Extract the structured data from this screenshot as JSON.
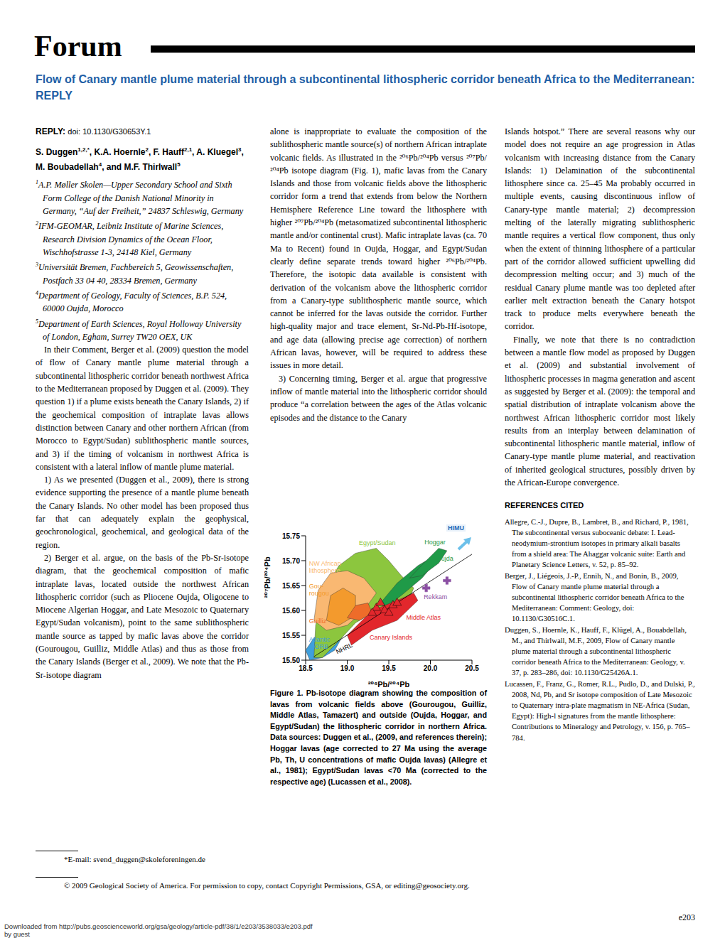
{
  "page": {
    "section": "Forum",
    "title": "Flow of Canary mantle plume material through a subcontinental lithospheric corridor beneath Africa to the Mediterranean: REPLY",
    "reply_label": "REPLY:",
    "doi": "doi: 10.1130/G30653Y.1",
    "authors": [
      {
        "text": "S. Duggen"
      },
      {
        "sup": "1,2,*"
      },
      {
        "text": ", K.A. Hoernle"
      },
      {
        "sup": "2"
      },
      {
        "text": ", F. Hauff"
      },
      {
        "sup": "2,1"
      },
      {
        "text": ", A. Kluegel"
      },
      {
        "sup": "3"
      },
      {
        "text": ", M. Boubadellah"
      },
      {
        "sup": "4"
      },
      {
        "text": ", and M.F. Thirlwall"
      },
      {
        "sup": "5"
      }
    ],
    "affiliations": [
      {
        "num": "1",
        "text": "A.P. Møller Skolen—Upper Secondary School and Sixth Form College of the Danish National Minority in Germany, “Auf der Freiheit,” 24837 Schleswig, Germany"
      },
      {
        "num": "2",
        "text": "IFM-GEOMAR, Leibniz Institute of Marine Sciences, Research Division Dynamics of the Ocean Floor, Wischhofstrasse 1-3, 24148 Kiel, Germany"
      },
      {
        "num": "3",
        "text": "Universität Bremen, Fachbereich 5, Geowissenschaften, Postfach 33 04 40, 28334 Bremen, Germany"
      },
      {
        "num": "4",
        "text": "Department of Geology, Faculty of Sciences, B.P. 524, 60000 Oujda, Morocco"
      },
      {
        "num": "5",
        "text": "Department of Earth Sciences, Royal Holloway University of London, Egham, Surrey TW20 OEX, UK"
      }
    ],
    "column_1": [
      "In their Comment, Berger et al. (2009) question the model of flow of Canary mantle plume material through a subcontinental lithospheric corridor beneath northwest Africa to the Mediterranean proposed by Duggen et al. (2009). They question 1) if a plume exists beneath the Canary Islands, 2) if the geochemical composition of intraplate lavas allows distinction between Canary and other northern African (from Morocco to Egypt/Sudan) sublithospheric mantle sources, and 3) if the timing of volcanism in northwest Africa is consistent with a lateral inflow of mantle plume material.",
      "1) As we presented (Duggen et al., 2009), there is strong evidence supporting the presence of a mantle plume beneath the Canary Islands. No other model has been proposed thus far that can adequately explain the geophysical, geochronological, geochemical, and geological data of the region.",
      "2) Berger et al. argue, on the basis of the Pb-Sr-isotope diagram, that the geochemical composition of mafic intraplate lavas, located outside the northwest African lithospheric corridor (such as Pliocene Oujda, Oligocene to Miocene Algerian Hoggar, and Late Mesozoic to Quaternary Egypt/Sudan volcanism), point to the same sublithospheric mantle source as tapped by mafic lavas above the corridor (Gourougou, Guilliz, Middle Atlas) and thus as those from the Canary Islands (Berger et al., 2009). We note that the Pb-Sr-isotope diagram"
    ],
    "column_2": [
      "alone is inappropriate to evaluate the composition of the sublithospheric mantle source(s) of northern African intraplate volcanic fields. As illustrated in the ²⁰⁶Pb/²⁰⁴Pb versus ²⁰⁷Pb/²⁰⁴Pb isotope diagram (Fig. 1), mafic lavas from the Canary Islands and those from volcanic fields above the lithospheric corridor form a trend that extends from below the Northern Hemisphere Reference Line toward the lithosphere with higher ²⁰⁷Pb/²⁰⁴Pb (metasomatized subcontinental lithospheric mantle and/or continental crust). Mafic intraplate lavas (ca. 70 Ma to Recent) found in Oujda, Hoggar, and Egypt/Sudan clearly define separate trends toward higher ²⁰⁶Pb/²⁰⁴Pb. Therefore, the isotopic data available is consistent with derivation of the volcanism above the lithospheric corridor from a Canary-type sublithospheric mantle source, which cannot be inferred for the lavas outside the corridor. Further high-quality major and trace element, Sr-Nd-Pb-Hf-isotope, and age data (allowing precise age correction) of northern African lavas, however, will be required to address these issues in more detail.",
      "3) Concerning timing, Berger et al. argue that progressive inflow of mantle material into the lithospheric corridor should produce “a correlation between the ages of the Atlas volcanic episodes and the distance to the Canary"
    ],
    "column_3": [
      "Islands hotspot.” There are several reasons why our model does not require an age progression in Atlas volcanism with increasing distance from the Canary Islands: 1) Delamination of the subcontinental lithosphere since ca. 25–45 Ma probably occurred in multiple events, causing discontinuous inflow of Canary-type mantle material; 2) decompression melting of the laterally migrating sublithospheric mantle requires a vertical flow component, thus only when the extent of thinning lithosphere of a particular part of the corridor allowed sufficient upwelling did decompression melting occur; and 3) much of the residual Canary plume mantle was too depleted after earlier melt extraction beneath the Canary hotspot track to produce melts everywhere beneath the corridor.",
      "Finally, we note that there is no contradiction between a mantle flow model as proposed by Duggen et al. (2009) and substantial involvement of lithospheric processes in magma generation and ascent as suggested by Berger et al. (2009): the temporal and spatial distribution of intraplate volcanism above the northwest African lithospheric corridor most likely results from an interplay between delamination of subcontinental lithospheric mantle material, inflow of Canary-type mantle plume material, and reactivation of inherited geological structures, possibly driven by the African-Europe convergence."
    ],
    "references_title": "REFERENCES CITED",
    "references": [
      "Allegre, C.-J., Dupre, B., Lambret, B., and Richard, P., 1981, The subcontinental versus suboceanic debate: I. Lead-neodymium-strontium isotopes in primary alkali basalts from a shield area: The Ahaggar volcanic suite: Earth and Planetary Science Letters, v. 52, p. 85–92.",
      "Berger, J., Liégeois, J.-P., Ennih, N., and Bonin, B., 2009, Flow of Canary mantle plume material through a subcontinental lithospheric corridor beneath Africa to the Mediterranean: Comment: Geology, doi: 10.1130/G30516C.1.",
      "Duggen, S., Hoernle, K., Hauff, F., Klügel, A., Bouabdellah, M., and Thirlwall, M.F., 2009, Flow of Canary mantle plume material through a subcontinental lithospheric corridor beneath Africa to the Mediterranean: Geology, v. 37, p. 283–286, doi: 10.1130/G25426A.1.",
      "Lucassen, F., Franz, G., Romer, R.L., Pudlo, D., and Dulski, P., 2008, Nd, Pb, and Sr isotope composition of Late Mesozoic to Quaternary intra-plate magmatism in NE-Africa (Sudan, Egypt): High-l signatures from the mantle lithosphere: Contributions to Mineralogy and Petrology, v. 156, p. 765–784."
    ],
    "caption": "Figure 1. Pb-isotope diagram showing the composition of lavas from volcanic fields above (Gourougou, Guilliz, Middle Atlas, Tamazert) and outside (Oujda, Hoggar, and Egypt/Sudan) the lithospheric corridor in northern Africa. Data sources: Duggen et al., (2009, and references therein); Hoggar lavas (age corrected to 27 Ma using the average Pb, Th, U concentrations of mafic Oujda lavas) (Allegre et al., 1981); Egypt/Sudan lavas <70 Ma (corrected to the respective age) (Lucassen et al., 2008).",
    "footnote": "*E-mail: svend_duggen@skoleforeningen.de",
    "copyright": "© 2009 Geological Society of America. For permission to copy, contact Copyright Permissions, GSA, or editing@geosociety.org.",
    "page_number": "e203",
    "download": "Downloaded from http://pubs.geoscienceworld.org/gsa/geology/article-pdf/38/1/e203/3538033/e203.pdf",
    "by_guest": "by guest"
  },
  "chart_data": {
    "type": "scatter",
    "x_label": "²⁰⁶Pb/²⁰⁴Pb",
    "y_label": "²⁰⁷Pb/²⁰⁴Pb",
    "xlim": [
      18.5,
      20.5
    ],
    "ylim": [
      15.5,
      15.75
    ],
    "xticks": [
      18.5,
      {
        "value": 19,
        "label": "19.0"
      },
      19.5,
      {
        "value": 20,
        "label": "20.0"
      },
      20.5
    ],
    "yticks": [
      {
        "value": 15.5,
        "label": "15.50"
      },
      15.55,
      {
        "value": 15.6,
        "label": "15.60"
      },
      15.65,
      {
        "value": 15.7,
        "label": "15.70"
      },
      15.75
    ],
    "grid": false,
    "annotations": [
      {
        "text": "HIMU",
        "color": "#2a6ebb"
      }
    ],
    "series": [
      {
        "name": "Atlantic\nMORB",
        "type": "field",
        "color": "#3f9fdc",
        "x": [
          18.5,
          18.6,
          18.8,
          18.95,
          18.85,
          18.7,
          18.55
        ],
        "values": [
          15.52,
          15.545,
          15.56,
          15.55,
          15.52,
          15.505,
          15.5
        ]
      },
      {
        "name": "Egypt/Sudan",
        "type": "field",
        "color": "#8cc63e",
        "x": [
          18.6,
          18.62,
          18.72,
          18.9,
          19.1,
          19.35,
          19.5,
          19.65,
          19.8,
          19.75,
          19.4,
          19.1,
          18.85,
          18.7
        ],
        "values": [
          15.505,
          15.57,
          15.64,
          15.69,
          15.715,
          15.725,
          15.7,
          15.67,
          15.645,
          15.625,
          15.605,
          15.575,
          15.53,
          15.505
        ]
      },
      {
        "name": "NW African\nlithosphere",
        "type": "field",
        "color": "#f9b872",
        "x": [
          18.6,
          18.65,
          18.8,
          19.0,
          19.2,
          19.35,
          19.2,
          19.0,
          18.75
        ],
        "values": [
          15.58,
          15.64,
          15.675,
          15.68,
          15.665,
          15.635,
          15.6,
          15.57,
          15.56
        ]
      },
      {
        "name": "Oujda",
        "type": "field",
        "color": "#1f9a48",
        "x": [
          19.4,
          19.6,
          19.85,
          20.0,
          20.05,
          19.9,
          19.65,
          19.45
        ],
        "values": [
          15.615,
          15.655,
          15.69,
          15.705,
          15.695,
          15.665,
          15.63,
          15.605
        ]
      },
      {
        "name": "Hoggar",
        "type": "field",
        "color": "#1f9a48",
        "x": [
          19.75,
          19.95,
          20.1,
          20.2,
          20.1,
          19.9
        ],
        "values": [
          15.665,
          15.7,
          15.725,
          15.72,
          15.695,
          15.67
        ]
      },
      {
        "name": "Gou-\nrougou",
        "type": "field",
        "color": "#f39a2d",
        "x": [
          18.75,
          18.8,
          18.95,
          19.1,
          19.1,
          18.9
        ],
        "values": [
          15.58,
          15.63,
          15.645,
          15.63,
          15.59,
          15.57
        ]
      },
      {
        "name": "Canary Islands",
        "type": "field",
        "color": "#e2272c",
        "x": [
          19.0,
          19.3,
          19.6,
          19.8,
          19.85,
          19.6,
          19.3,
          19.05
        ],
        "values": [
          15.55,
          15.6,
          15.62,
          15.635,
          15.62,
          15.58,
          15.56,
          15.53
        ]
      },
      {
        "name": "Guilliz",
        "type": "field",
        "color": "#ee6c2a",
        "x": [
          19.0,
          19.1,
          19.25,
          19.3,
          19.15
        ],
        "values": [
          15.585,
          15.61,
          15.615,
          15.595,
          15.58
        ]
      },
      {
        "name": "NHRL",
        "type": "line",
        "color": "#000000",
        "x": [
          18.6,
          20.5
        ],
        "values": [
          15.507,
          15.713
        ]
      },
      {
        "name": "Middle Atlas",
        "type": "scatter",
        "marker": "triangle",
        "color": "#e2272c",
        "x": [
          19.35,
          19.4,
          19.45,
          19.55,
          19.6,
          19.5,
          19.3
        ],
        "values": [
          15.605,
          15.615,
          15.6,
          15.61,
          15.615,
          15.595,
          15.595
        ]
      },
      {
        "name": "Rekkam",
        "type": "scatter",
        "marker": "cross",
        "color": "#8b4fa3",
        "x": [
          19.95,
          20.2
        ],
        "values": [
          15.645,
          15.66
        ]
      }
    ]
  }
}
